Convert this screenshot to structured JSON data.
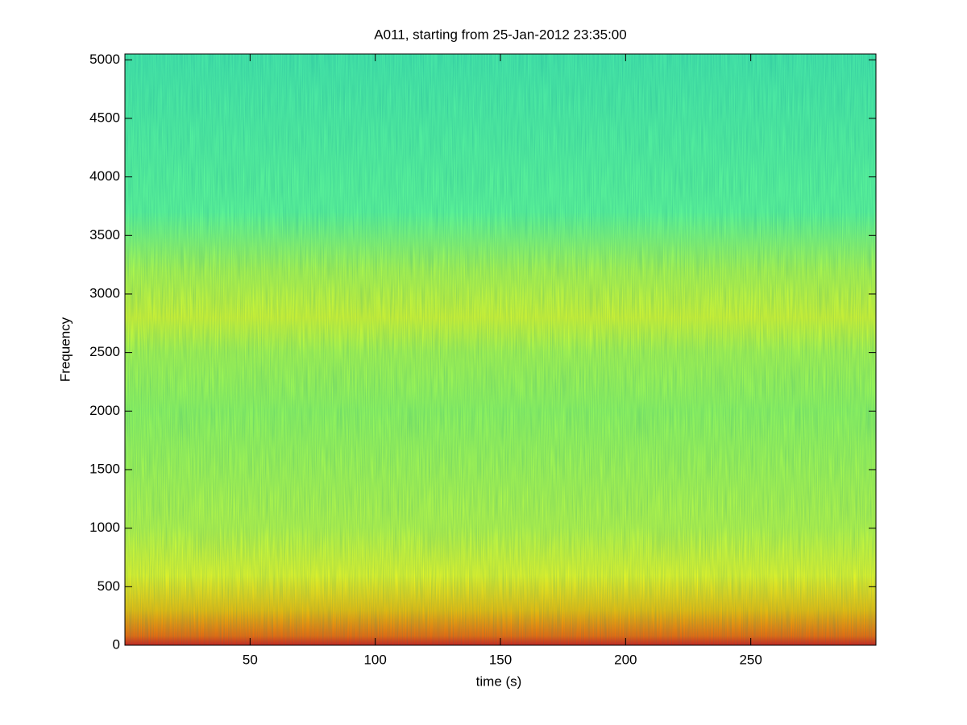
{
  "chart_data": {
    "type": "spectrogram",
    "title": "A011, starting from 25-Jan-2012 23:35:00",
    "x_label": "time (s)",
    "y_label": "Frequency",
    "xlim": [
      0,
      300
    ],
    "ylim": [
      0,
      5050
    ],
    "xticks": [
      50,
      100,
      150,
      200,
      250
    ],
    "yticks": [
      0,
      500,
      1000,
      1500,
      2000,
      2500,
      3000,
      3500,
      4000,
      4500,
      5000
    ],
    "color_stops": [
      {
        "frequency": 0,
        "color": "#e41a10"
      },
      {
        "frequency": 80,
        "color": "#ff6a00"
      },
      {
        "frequency": 300,
        "color": "#ffc400"
      },
      {
        "frequency": 600,
        "color": "#f4ff20"
      },
      {
        "frequency": 1000,
        "color": "#c4ff40"
      },
      {
        "frequency": 2000,
        "color": "#9cff58"
      },
      {
        "frequency": 2500,
        "color": "#b4ff48"
      },
      {
        "frequency": 2800,
        "color": "#e4ff28"
      },
      {
        "frequency": 3200,
        "color": "#b8ff48"
      },
      {
        "frequency": 3700,
        "color": "#64ff96"
      },
      {
        "frequency": 5050,
        "color": "#4cf0a8"
      }
    ]
  }
}
